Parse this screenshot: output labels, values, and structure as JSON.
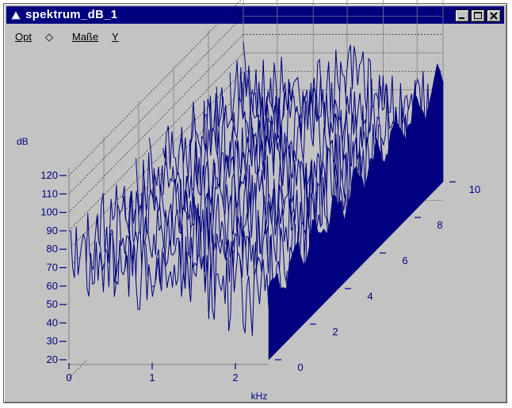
{
  "window": {
    "title": "spektrum_dB_1"
  },
  "menu": {
    "items": [
      "Opt",
      "◇",
      "Maße",
      "Y"
    ]
  },
  "chart_data": {
    "type": "waterfall-3d",
    "ylabel": "dB",
    "xlabel": "kHz",
    "y_ticks": [
      "120",
      "110",
      "100",
      "90",
      "80",
      "70",
      "60",
      "50",
      "40",
      "30",
      "20"
    ],
    "x_ticks": [
      "0",
      "1",
      "2"
    ],
    "z_ticks": [
      "0",
      "2",
      "4",
      "6",
      "8",
      "10"
    ],
    "ylim": [
      20,
      120
    ],
    "xlim": [
      0,
      2.4
    ],
    "zlim": [
      0,
      10
    ],
    "grid": true,
    "colors": {
      "surface": "#000080",
      "grid": "#808080",
      "background": "#c3c3c3"
    }
  }
}
